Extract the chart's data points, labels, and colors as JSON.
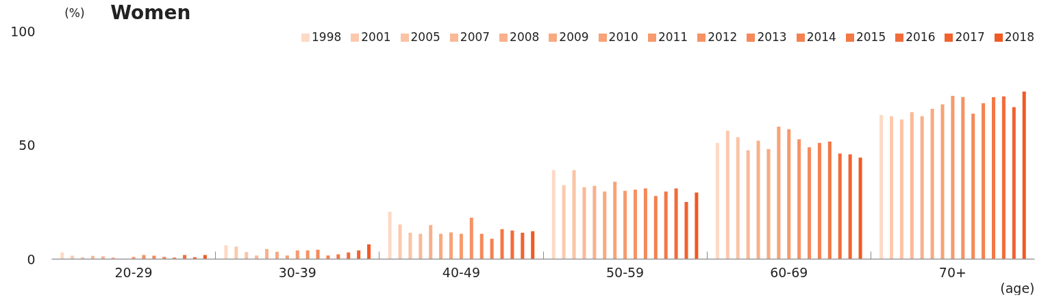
{
  "chart_data": {
    "type": "bar",
    "title": "Women",
    "ylabel": "(%)",
    "xlabel": "(age)",
    "categories": [
      "20-29",
      "30-39",
      "40-49",
      "50-59",
      "60-69",
      "70+"
    ],
    "ylim": [
      0,
      100
    ],
    "yticks": [
      0,
      50,
      100
    ],
    "grid": false,
    "legend": "top right",
    "series": [
      {
        "name": "1998",
        "color": "#fddac6",
        "values": [
          2.9,
          6.1,
          20.7,
          38.9,
          50.8,
          63.0
        ]
      },
      {
        "name": "2001",
        "color": "#fcc9ad",
        "values": [
          1.5,
          5.5,
          15.1,
          32.3,
          56.2,
          62.5
        ]
      },
      {
        "name": "2005",
        "color": "#fbc3a4",
        "values": [
          0.8,
          3.1,
          11.5,
          38.9,
          53.3,
          61.1
        ]
      },
      {
        "name": "2007",
        "color": "#fab998",
        "values": [
          1.4,
          1.6,
          11.1,
          31.4,
          47.6,
          64.3
        ]
      },
      {
        "name": "2008",
        "color": "#f9b08c",
        "values": [
          1.2,
          4.4,
          14.9,
          32.0,
          51.8,
          62.5
        ]
      },
      {
        "name": "2009",
        "color": "#f9a980",
        "values": [
          0.7,
          3.2,
          11.1,
          29.6,
          48.1,
          65.7
        ]
      },
      {
        "name": "2010",
        "color": "#f8a277",
        "values": [
          null,
          1.6,
          11.7,
          33.8,
          57.9,
          67.7
        ]
      },
      {
        "name": "2011",
        "color": "#f79a6d",
        "values": [
          1.0,
          3.8,
          11.1,
          29.9,
          56.8,
          71.4
        ]
      },
      {
        "name": "2012",
        "color": "#f69264",
        "values": [
          1.8,
          3.8,
          18.1,
          30.4,
          52.4,
          70.9
        ]
      },
      {
        "name": "2013",
        "color": "#f5895a",
        "values": [
          1.5,
          4.1,
          11.1,
          30.9,
          48.9,
          63.6
        ]
      },
      {
        "name": "2014",
        "color": "#f48150",
        "values": [
          1.0,
          1.6,
          8.9,
          27.6,
          50.8,
          68.2
        ]
      },
      {
        "name": "2015",
        "color": "#f37846",
        "values": [
          0.7,
          2.1,
          13.1,
          29.6,
          51.4,
          70.8
        ]
      },
      {
        "name": "2016",
        "color": "#f26c3a",
        "values": [
          1.8,
          2.9,
          12.5,
          30.9,
          46.2,
          71.2
        ]
      },
      {
        "name": "2017",
        "color": "#f1622f",
        "values": [
          0.8,
          3.8,
          11.5,
          25.0,
          45.8,
          66.5
        ]
      },
      {
        "name": "2018",
        "color": "#f05a24",
        "values": [
          1.8,
          6.4,
          12.2,
          29.1,
          44.4,
          73.3
        ]
      }
    ]
  }
}
